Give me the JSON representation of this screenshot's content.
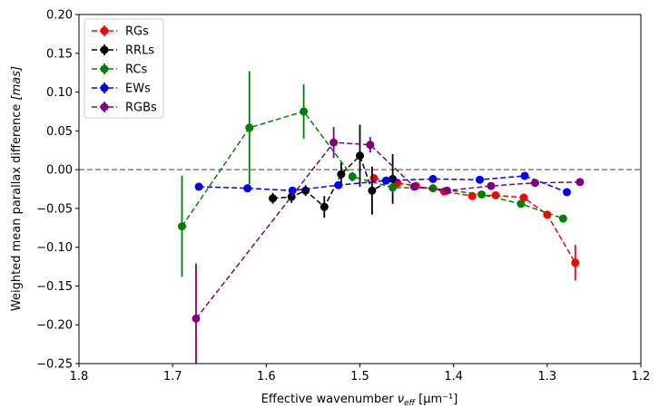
{
  "chart_data": {
    "type": "scatter",
    "title": "",
    "xlabel": "Effective wavenumber",
    "xlabel_symbol": "ν",
    "xlabel_sub": "eff",
    "xlabel_unit": "[μm⁻¹]",
    "ylabel": "Weighted mean parallax difference",
    "ylabel_unit": "[mas]",
    "xlim": [
      1.8,
      1.2
    ],
    "ylim": [
      -0.25,
      0.2
    ],
    "x_ticks": [
      1.8,
      1.7,
      1.6,
      1.5,
      1.4,
      1.3,
      1.2
    ],
    "x_tick_labels": [
      "1.8",
      "1.7",
      "1.6",
      "1.5",
      "1.4",
      "1.3",
      "1.2"
    ],
    "y_ticks": [
      -0.25,
      -0.2,
      -0.15,
      -0.1,
      -0.05,
      0.0,
      0.05,
      0.1,
      0.15,
      0.2
    ],
    "y_tick_labels": [
      "−0.25",
      "−0.20",
      "−0.15",
      "−0.10",
      "−0.05",
      "0.00",
      "0.05",
      "0.10",
      "0.15",
      "0.20"
    ],
    "reference_line": {
      "y": 0.0,
      "color": "#808080",
      "style": "dashed"
    },
    "legend_position": "top-left",
    "series": [
      {
        "name": "RGs",
        "color": "#ff0000",
        "x": [
          1.485,
          1.46,
          1.44,
          1.41,
          1.38,
          1.355,
          1.325,
          1.3,
          1.27
        ],
        "y": [
          -0.011,
          -0.017,
          -0.021,
          -0.028,
          -0.034,
          -0.033,
          -0.036,
          -0.058,
          -0.12
        ],
        "err": [
          0.004,
          0.004,
          0.004,
          0.004,
          0.004,
          0.004,
          0.005,
          0.005,
          0.023
        ]
      },
      {
        "name": "RRLs",
        "color": "#000000",
        "x": [
          1.593,
          1.573,
          1.558,
          1.538,
          1.52,
          1.5,
          1.487,
          1.465
        ],
        "y": [
          -0.037,
          -0.035,
          -0.027,
          -0.048,
          -0.006,
          0.018,
          -0.027,
          -0.012
        ],
        "err": [
          0.007,
          0.008,
          0.007,
          0.014,
          0.015,
          0.04,
          0.031,
          0.032
        ]
      },
      {
        "name": "RCs",
        "color": "#008000",
        "x": [
          1.69,
          1.618,
          1.56,
          1.508,
          1.465,
          1.422,
          1.37,
          1.328,
          1.283
        ],
        "y": [
          -0.073,
          0.054,
          0.075,
          -0.009,
          -0.023,
          -0.024,
          -0.032,
          -0.044,
          -0.063
        ],
        "err": [
          0.065,
          0.073,
          0.035,
          0.006,
          0.006,
          0.004,
          0.004,
          0.004,
          0.004
        ]
      },
      {
        "name": "EWs",
        "color": "#0000ff",
        "x": [
          1.672,
          1.62,
          1.572,
          1.523,
          1.472,
          1.422,
          1.372,
          1.324,
          1.279
        ],
        "y": [
          -0.022,
          -0.024,
          -0.027,
          -0.02,
          -0.014,
          -0.012,
          -0.013,
          -0.008,
          -0.029
        ],
        "err": [
          0.004,
          0.003,
          0.004,
          0.003,
          0.003,
          0.003,
          0.003,
          0.003,
          0.004
        ]
      },
      {
        "name": "RGBs",
        "color": "#800080",
        "x": [
          1.675,
          1.528,
          1.489,
          1.442,
          1.407,
          1.36,
          1.313,
          1.265
        ],
        "y": [
          -0.192,
          0.035,
          0.032,
          -0.022,
          -0.027,
          -0.021,
          -0.017,
          -0.016
        ],
        "err": [
          0.071,
          0.02,
          0.01,
          0.004,
          0.004,
          0.004,
          0.004,
          0.004
        ]
      }
    ]
  }
}
